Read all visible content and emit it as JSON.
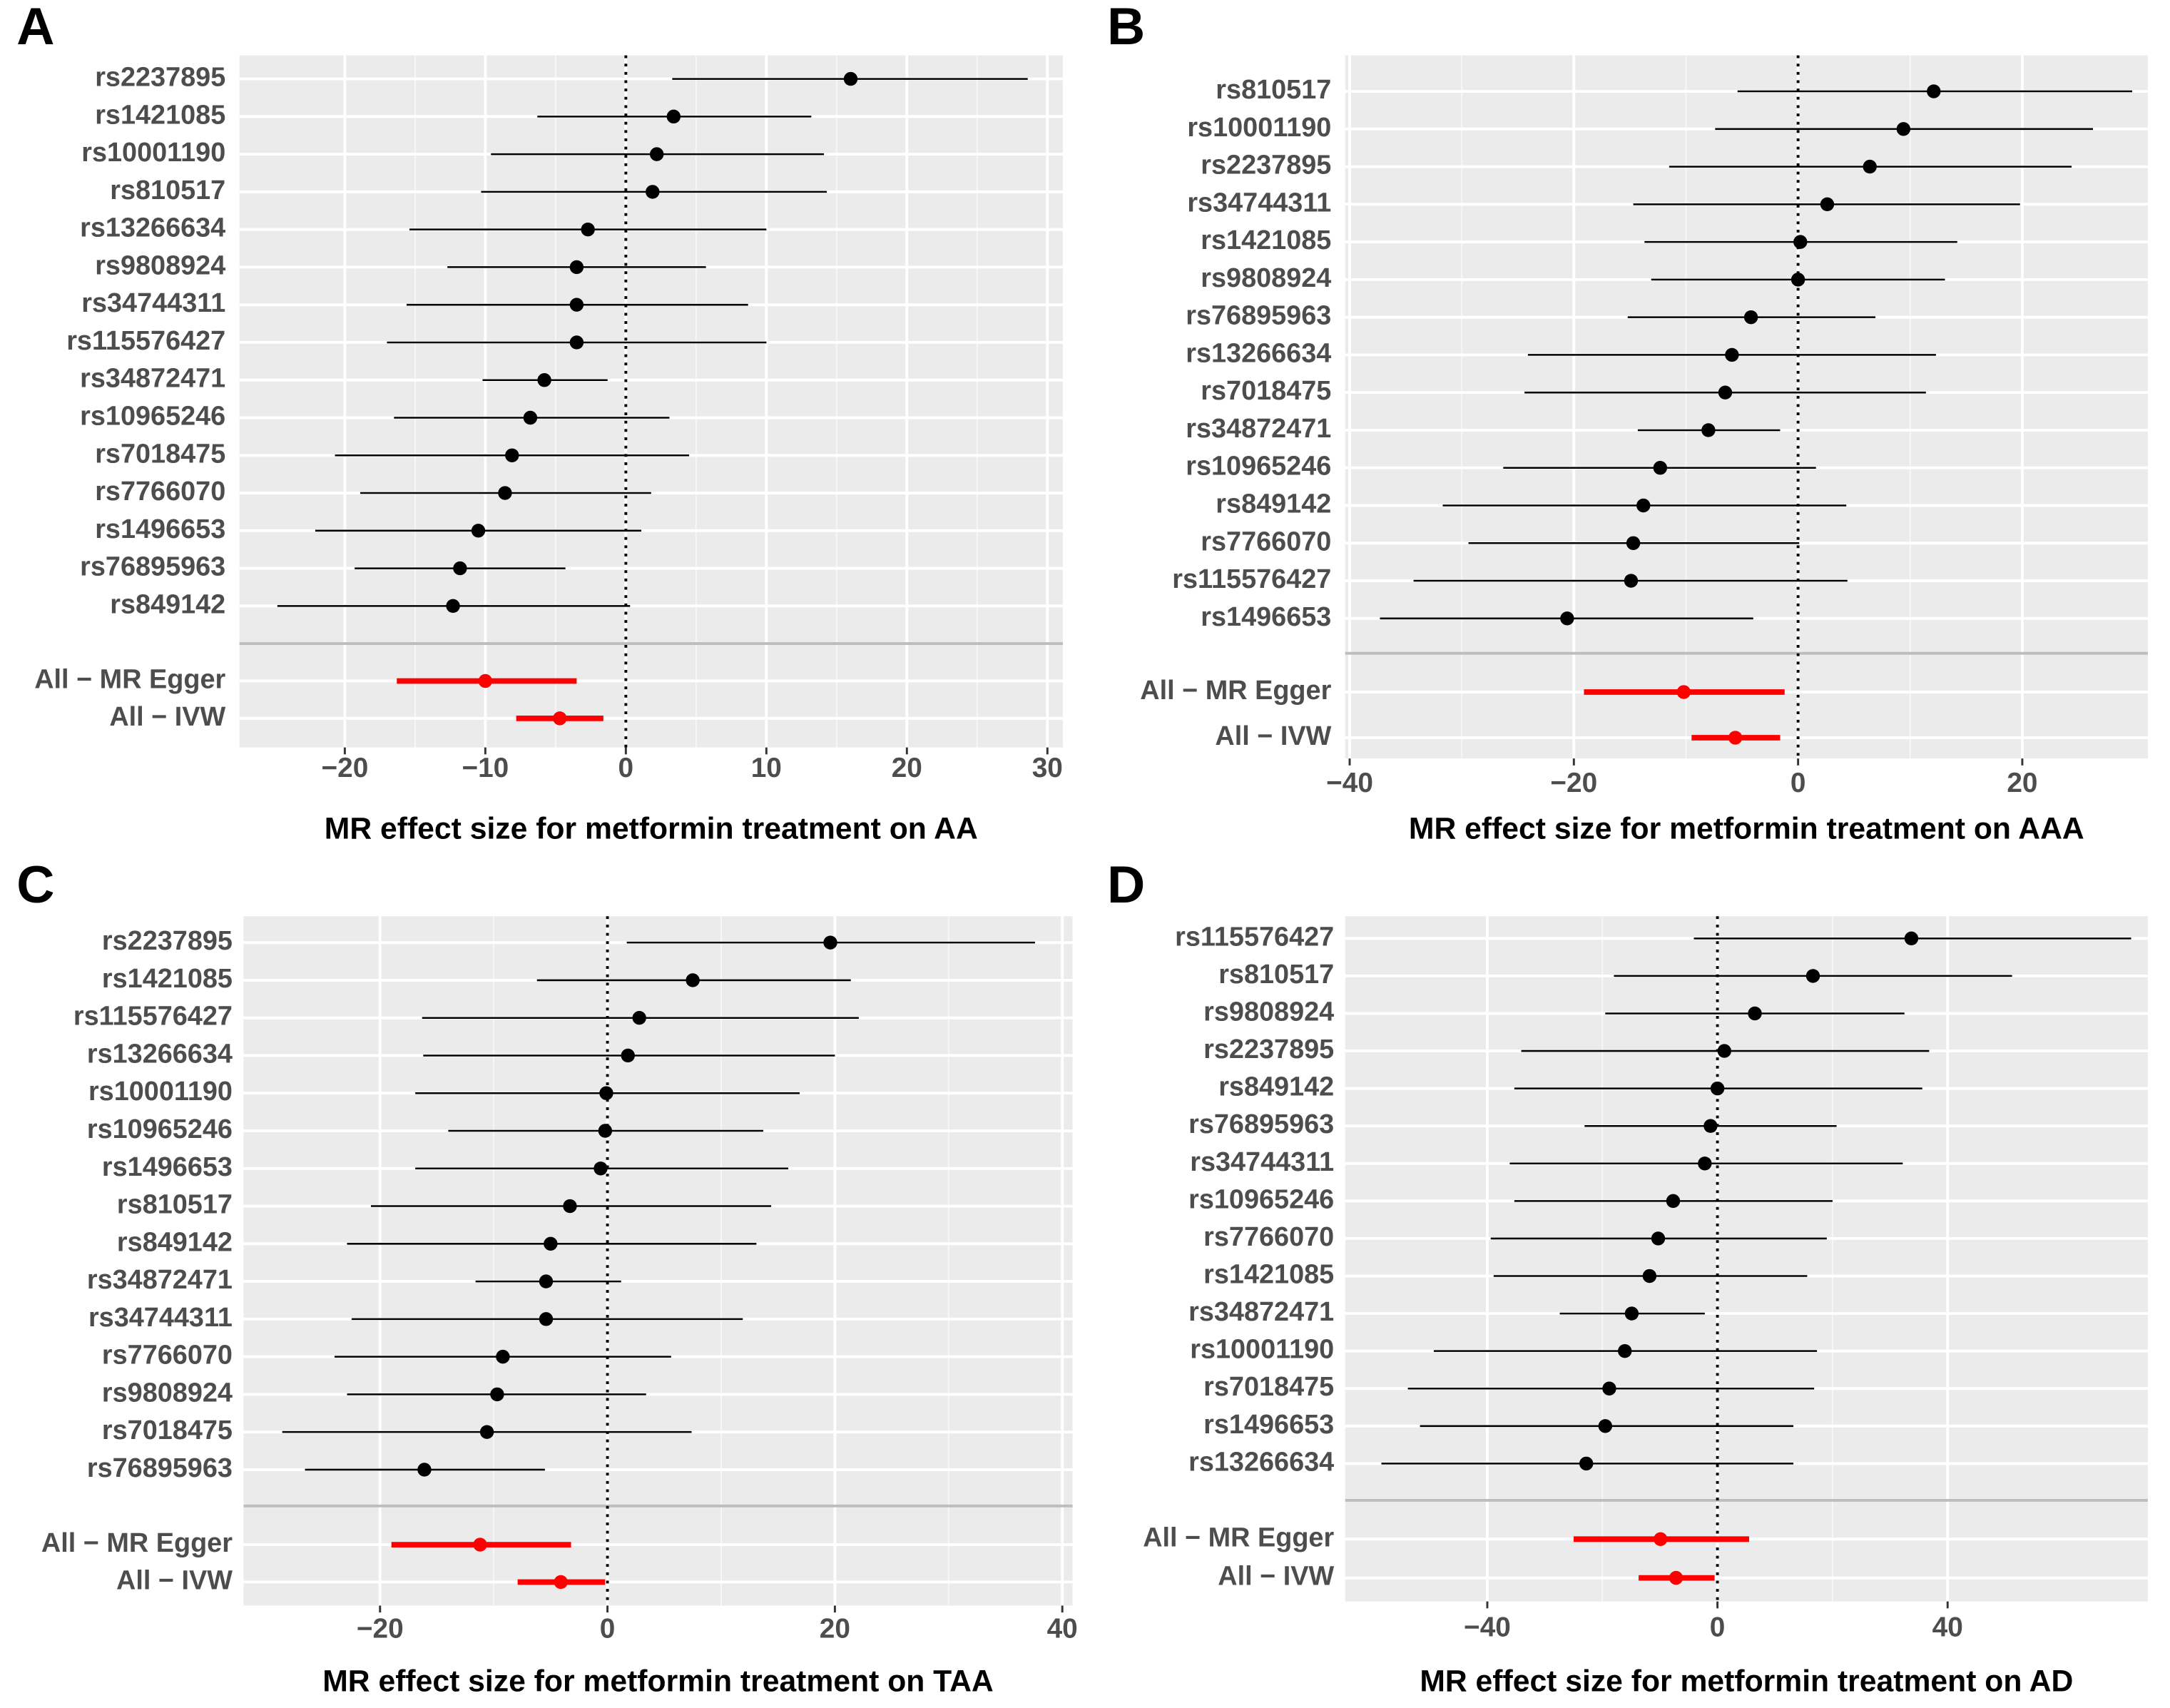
{
  "chart_data": [
    {
      "type": "forest",
      "panel": "A",
      "x_label": "MR effect size for metformin treatment on AA",
      "categories": [
        "rs2237895",
        "rs1421085",
        "rs10001190",
        "rs810517",
        "rs13266634",
        "rs9808924",
        "rs34744311",
        "rs115576427",
        "rs34872471",
        "rs10965246",
        "rs7018475",
        "rs7766070",
        "rs1496653",
        "rs76895963",
        "rs849142"
      ],
      "values": [
        16.0,
        3.4,
        2.2,
        1.9,
        -2.7,
        -3.5,
        -3.5,
        -3.5,
        -5.8,
        -6.8,
        -8.1,
        -8.6,
        -10.5,
        -11.8,
        -12.3
      ],
      "lower": [
        3.3,
        -6.3,
        -9.6,
        -10.3,
        -15.4,
        -12.7,
        -15.6,
        -17.0,
        -10.2,
        -16.5,
        -20.7,
        -18.9,
        -22.1,
        -19.3,
        -24.8
      ],
      "upper": [
        28.6,
        13.2,
        14.1,
        14.3,
        10.0,
        5.7,
        8.7,
        10.0,
        -1.3,
        3.1,
        4.5,
        1.8,
        1.1,
        -4.3,
        0.3
      ],
      "color": "#000000",
      "summary": {
        "categories": [
          "All − MR Egger",
          "All − IVW"
        ],
        "values": [
          -10.0,
          -4.7
        ],
        "lower": [
          -16.3,
          -7.8
        ],
        "upper": [
          -3.5,
          -1.6
        ],
        "color": "#ff0000"
      },
      "xlim": [
        -27.5,
        31.1
      ],
      "xticks": [
        {
          "value": -20,
          "label": "−20"
        },
        {
          "value": -10,
          "label": "−10"
        },
        0,
        10,
        20,
        30
      ],
      "vline": 0,
      "grid": true
    },
    {
      "type": "forest",
      "panel": "B",
      "x_label": "MR effect size for metformin treatment on AAA",
      "categories": [
        "rs810517",
        "rs10001190",
        "rs2237895",
        "rs34744311",
        "rs1421085",
        "rs9808924",
        "rs76895963",
        "rs13266634",
        "rs7018475",
        "rs34872471",
        "rs10965246",
        "rs849142",
        "rs7766070",
        "rs115576427",
        "rs1496653"
      ],
      "values": [
        12.1,
        9.4,
        6.4,
        2.6,
        0.2,
        0.0,
        -4.2,
        -5.9,
        -6.5,
        -8.0,
        -12.3,
        -13.8,
        -14.7,
        -14.9,
        -20.6
      ],
      "lower": [
        -5.4,
        -7.4,
        -11.5,
        -14.7,
        -13.7,
        -13.1,
        -15.2,
        -24.1,
        -24.4,
        -14.3,
        -26.3,
        -31.7,
        -29.4,
        -34.3,
        -37.3
      ],
      "upper": [
        29.8,
        26.3,
        24.4,
        19.8,
        14.2,
        13.1,
        6.9,
        12.3,
        11.4,
        -1.6,
        1.6,
        4.3,
        0.1,
        4.4,
        -4.0
      ],
      "color": "#000000",
      "summary": {
        "categories": [
          "All − MR Egger",
          "All − IVW"
        ],
        "values": [
          -10.2,
          -5.6
        ],
        "lower": [
          -19.1,
          -9.5
        ],
        "upper": [
          -1.2,
          -1.6
        ],
        "color": "#ff0000"
      },
      "xlim": [
        -40.4,
        31.2
      ],
      "xticks": [
        {
          "value": -40,
          "label": "−40"
        },
        {
          "value": -20,
          "label": "−20"
        },
        0,
        20
      ],
      "vline": 0,
      "grid": true
    },
    {
      "type": "forest",
      "panel": "C",
      "x_label": "MR effect size for metformin treatment on TAA",
      "categories": [
        "rs2237895",
        "rs1421085",
        "rs115576427",
        "rs13266634",
        "rs10001190",
        "rs10965246",
        "rs1496653",
        "rs810517",
        "rs849142",
        "rs34872471",
        "rs34744311",
        "rs7766070",
        "rs9808924",
        "rs7018475",
        "rs76895963"
      ],
      "values": [
        19.6,
        7.5,
        2.8,
        1.8,
        -0.1,
        -0.2,
        -0.6,
        -3.3,
        -5.0,
        -5.4,
        -5.4,
        -9.2,
        -9.7,
        -10.6,
        -16.1
      ],
      "lower": [
        1.7,
        -6.2,
        -16.3,
        -16.2,
        -16.9,
        -14.0,
        -16.9,
        -20.8,
        -22.9,
        -11.6,
        -22.5,
        -24.0,
        -22.9,
        -28.6,
        -26.6
      ],
      "upper": [
        37.6,
        21.4,
        22.1,
        20.0,
        16.9,
        13.7,
        15.9,
        14.4,
        13.1,
        1.2,
        11.9,
        5.6,
        3.4,
        7.4,
        -5.5
      ],
      "color": "#000000",
      "summary": {
        "categories": [
          "All − MR Egger",
          "All − IVW"
        ],
        "values": [
          -11.2,
          -4.1
        ],
        "lower": [
          -19.0,
          -7.9
        ],
        "upper": [
          -3.2,
          -0.2
        ],
        "color": "#ff0000"
      },
      "xlim": [
        -32.0,
        40.9
      ],
      "xticks": [
        {
          "value": -20,
          "label": "−20"
        },
        0,
        20,
        40
      ],
      "vline": 0,
      "grid": true
    },
    {
      "type": "forest",
      "panel": "D",
      "x_label": "MR effect size for metformin treatment on AD",
      "categories": [
        "rs115576427",
        "rs810517",
        "rs9808924",
        "rs2237895",
        "rs849142",
        "rs76895963",
        "rs34744311",
        "rs10965246",
        "rs7766070",
        "rs1421085",
        "rs34872471",
        "rs10001190",
        "rs7018475",
        "rs1496653",
        "rs13266634"
      ],
      "values": [
        33.7,
        16.6,
        6.5,
        1.2,
        0.0,
        -1.2,
        -2.2,
        -7.7,
        -10.3,
        -11.8,
        -14.9,
        -16.1,
        -18.8,
        -19.5,
        -22.8
      ],
      "lower": [
        -4.1,
        -18.0,
        -19.5,
        -34.1,
        -35.3,
        -23.1,
        -36.1,
        -35.3,
        -39.4,
        -38.9,
        -27.4,
        -49.3,
        -53.8,
        -51.7,
        -58.4
      ],
      "upper": [
        71.9,
        51.2,
        32.5,
        36.8,
        35.6,
        20.7,
        32.2,
        20.0,
        19.0,
        15.6,
        -2.2,
        17.3,
        16.8,
        13.2,
        13.2
      ],
      "color": "#000000",
      "summary": {
        "categories": [
          "All − MR Egger",
          "All − IVW"
        ],
        "values": [
          -9.9,
          -7.2
        ],
        "lower": [
          -25.0,
          -13.7
        ],
        "upper": [
          5.5,
          -0.5
        ],
        "color": "#ff0000"
      },
      "xlim": [
        -64.7,
        74.8
      ],
      "xticks": [
        {
          "value": -40,
          "label": "−40"
        },
        0,
        40
      ],
      "vline": 0,
      "grid": true
    }
  ]
}
